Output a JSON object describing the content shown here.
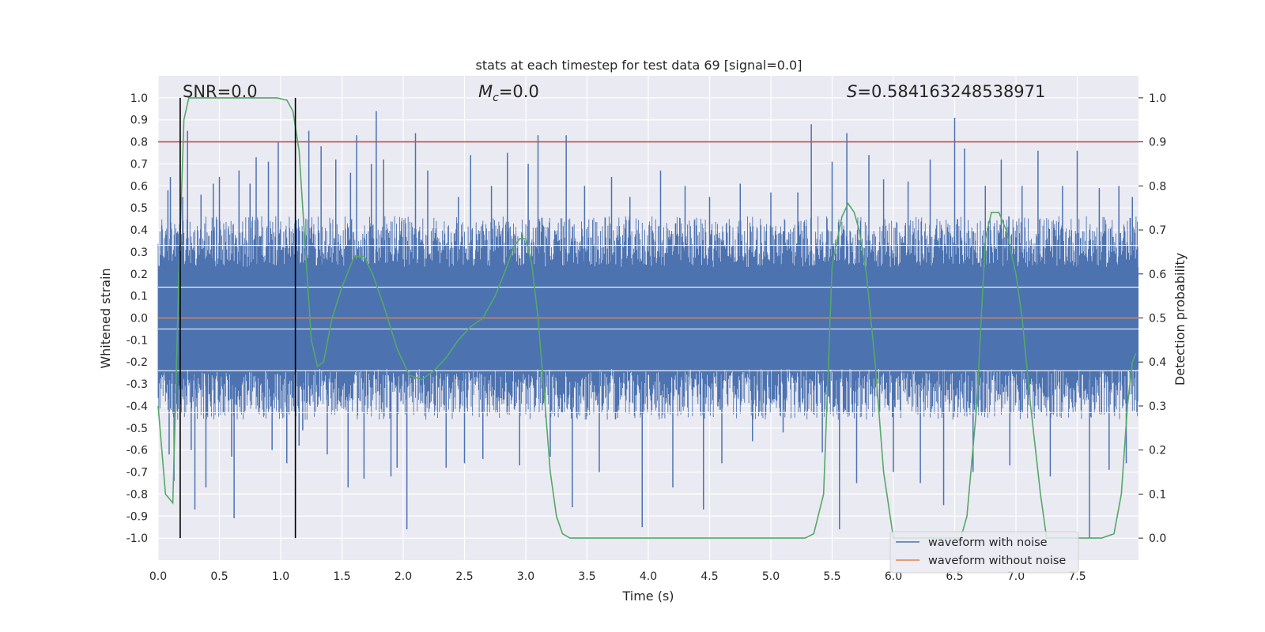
{
  "chart_data": {
    "type": "line",
    "title": "stats at each timestep for test data 69 [signal=0.0]",
    "xlabel": "Time (s)",
    "ylabel": "Whitened strain",
    "y2label": "Detection probability",
    "xlim": [
      0.0,
      8.0
    ],
    "ylim": [
      -1.1,
      1.1
    ],
    "y2lim": [
      -0.05,
      1.05
    ],
    "xticks": [
      "0.0",
      "0.5",
      "1.0",
      "1.5",
      "2.0",
      "2.5",
      "3.0",
      "3.5",
      "4.0",
      "4.5",
      "5.0",
      "5.5",
      "6.0",
      "6.5",
      "7.0",
      "7.5"
    ],
    "yticks": [
      "1.0",
      "0.9",
      "0.8",
      "0.7",
      "0.6",
      "0.5",
      "0.4",
      "0.3",
      "0.2",
      "0.1",
      "0.0",
      "-0.1",
      "-0.2",
      "-0.3",
      "-0.4",
      "-0.5",
      "-0.6",
      "-0.7",
      "-0.8",
      "-0.9",
      "-1.0"
    ],
    "y2ticks": [
      "1.0",
      "0.9",
      "0.8",
      "0.7",
      "0.6",
      "0.5",
      "0.4",
      "0.3",
      "0.2",
      "0.1",
      "0.0"
    ],
    "annotations": {
      "snr": "SNR=0.0",
      "mc_symbol": "M",
      "mc_sub": "c",
      "mc_value": "=0.0",
      "s_symbol": "S",
      "s_value": "=0.584163248538971"
    },
    "legend": {
      "placement": "lower-right",
      "entries": [
        "waveform with noise",
        "waveform without noise"
      ]
    },
    "grid": true,
    "colors": {
      "background": "#eaeaf2",
      "grid": "#ffffff",
      "noise": "#4c72b0",
      "clean": "#dd8452",
      "probability": "#55a868",
      "threshold": "#c44e52",
      "marker": "#000000"
    },
    "threshold": {
      "value": 0.9,
      "axis": "right"
    },
    "markers_x": [
      0.18,
      1.12
    ],
    "noise_series": {
      "name": "waveform with noise",
      "dense_band": [
        -0.42,
        0.42
      ],
      "spikes": [
        [
          0.03,
          0.42
        ],
        [
          0.08,
          0.58
        ],
        [
          0.09,
          -0.62
        ],
        [
          0.1,
          0.64
        ],
        [
          0.13,
          -0.74
        ],
        [
          0.2,
          0.55
        ],
        [
          0.24,
          0.85
        ],
        [
          0.27,
          -0.6
        ],
        [
          0.3,
          -0.87
        ],
        [
          0.35,
          0.56
        ],
        [
          0.39,
          -0.77
        ],
        [
          0.45,
          0.61
        ],
        [
          0.5,
          0.64
        ],
        [
          0.6,
          -0.63
        ],
        [
          0.62,
          -0.91
        ],
        [
          0.66,
          0.67
        ],
        [
          0.75,
          0.61
        ],
        [
          0.8,
          0.73
        ],
        [
          0.9,
          0.71
        ],
        [
          0.93,
          -0.6
        ],
        [
          0.98,
          0.8
        ],
        [
          1.05,
          -0.66
        ],
        [
          1.15,
          -0.58
        ],
        [
          1.18,
          -0.51
        ],
        [
          1.23,
          0.85
        ],
        [
          1.33,
          0.78
        ],
        [
          1.38,
          -0.62
        ],
        [
          1.45,
          0.72
        ],
        [
          1.55,
          -0.77
        ],
        [
          1.57,
          0.66
        ],
        [
          1.62,
          0.83
        ],
        [
          1.68,
          -0.73
        ],
        [
          1.74,
          0.7
        ],
        [
          1.78,
          0.94
        ],
        [
          1.84,
          0.72
        ],
        [
          1.9,
          -0.72
        ],
        [
          1.95,
          -0.68
        ],
        [
          2.03,
          -0.96
        ],
        [
          2.1,
          0.84
        ],
        [
          2.2,
          0.67
        ],
        [
          2.35,
          -0.68
        ],
        [
          2.45,
          0.55
        ],
        [
          2.5,
          -0.66
        ],
        [
          2.55,
          0.74
        ],
        [
          2.65,
          -0.64
        ],
        [
          2.72,
          0.6
        ],
        [
          2.85,
          0.75
        ],
        [
          2.95,
          -0.67
        ],
        [
          3.02,
          0.7
        ],
        [
          3.1,
          0.83
        ],
        [
          3.2,
          -0.63
        ],
        [
          3.33,
          0.83
        ],
        [
          3.38,
          -0.86
        ],
        [
          3.48,
          0.6
        ],
        [
          3.6,
          -0.7
        ],
        [
          3.7,
          0.64
        ],
        [
          3.85,
          0.55
        ],
        [
          3.95,
          -0.95
        ],
        [
          4.1,
          0.67
        ],
        [
          4.2,
          -0.77
        ],
        [
          4.3,
          0.6
        ],
        [
          4.45,
          -0.87
        ],
        [
          4.5,
          0.55
        ],
        [
          4.6,
          -0.66
        ],
        [
          4.75,
          0.61
        ],
        [
          4.85,
          -0.56
        ],
        [
          5.0,
          0.57
        ],
        [
          5.1,
          -0.52
        ],
        [
          5.22,
          0.57
        ],
        [
          5.33,
          0.88
        ],
        [
          5.42,
          -0.61
        ],
        [
          5.5,
          0.71
        ],
        [
          5.56,
          -0.96
        ],
        [
          5.62,
          0.84
        ],
        [
          5.7,
          -0.75
        ],
        [
          5.8,
          0.74
        ],
        [
          5.92,
          0.63
        ],
        [
          6.0,
          -0.7
        ],
        [
          6.12,
          0.62
        ],
        [
          6.22,
          -0.75
        ],
        [
          6.3,
          0.72
        ],
        [
          6.41,
          -0.85
        ],
        [
          6.5,
          0.91
        ],
        [
          6.58,
          0.77
        ],
        [
          6.65,
          -0.7
        ],
        [
          6.75,
          0.6
        ],
        [
          6.88,
          0.72
        ],
        [
          6.95,
          -0.67
        ],
        [
          7.05,
          0.6
        ],
        [
          7.18,
          0.76
        ],
        [
          7.28,
          -0.72
        ],
        [
          7.38,
          0.6
        ],
        [
          7.5,
          0.76
        ],
        [
          7.6,
          -1.0
        ],
        [
          7.68,
          0.59
        ],
        [
          7.76,
          -0.69
        ],
        [
          7.84,
          0.6
        ],
        [
          7.9,
          -0.66
        ],
        [
          7.95,
          0.55
        ]
      ]
    },
    "clean_series": {
      "name": "waveform without noise",
      "y": 0.0
    },
    "probability_series": {
      "x": [
        0.0,
        0.03,
        0.06,
        0.12,
        0.17,
        0.21,
        0.25,
        0.4,
        0.6,
        0.8,
        0.97,
        1.05,
        1.1,
        1.15,
        1.18,
        1.25,
        1.3,
        1.35,
        1.42,
        1.5,
        1.6,
        1.68,
        1.75,
        1.85,
        1.95,
        2.05,
        2.15,
        2.25,
        2.35,
        2.45,
        2.55,
        2.65,
        2.75,
        2.85,
        2.9,
        2.95,
        3.0,
        3.05,
        3.1,
        3.15,
        3.2,
        3.25,
        3.3,
        3.36,
        3.42,
        3.5,
        3.8,
        4.2,
        4.6,
        5.0,
        5.2,
        5.28,
        5.35,
        5.43,
        5.5,
        5.58,
        5.63,
        5.68,
        5.72,
        5.78,
        5.85,
        5.92,
        6.0,
        6.05,
        6.1,
        6.15,
        6.25,
        6.4,
        6.55,
        6.6,
        6.68,
        6.75,
        6.8,
        6.86,
        6.92,
        7.0,
        7.05,
        7.12,
        7.2,
        7.25,
        7.3,
        7.4,
        7.5,
        7.6,
        7.7,
        7.8,
        7.86,
        7.91,
        7.95,
        7.98
      ],
      "y": [
        0.3,
        0.2,
        0.1,
        0.08,
        0.6,
        0.95,
        1.0,
        1.0,
        1.0,
        1.0,
        1.0,
        0.995,
        0.97,
        0.88,
        0.75,
        0.45,
        0.39,
        0.4,
        0.5,
        0.57,
        0.64,
        0.64,
        0.6,
        0.52,
        0.43,
        0.37,
        0.36,
        0.38,
        0.41,
        0.45,
        0.48,
        0.5,
        0.55,
        0.62,
        0.66,
        0.68,
        0.68,
        0.62,
        0.5,
        0.33,
        0.15,
        0.05,
        0.01,
        0.0,
        0.0,
        0.0,
        0.0,
        0.0,
        0.0,
        0.0,
        0.0,
        0.0,
        0.01,
        0.1,
        0.62,
        0.73,
        0.76,
        0.74,
        0.7,
        0.6,
        0.4,
        0.15,
        0.0,
        0.0,
        0.0,
        0.0,
        0.0,
        0.0,
        0.0,
        0.05,
        0.3,
        0.68,
        0.74,
        0.74,
        0.7,
        0.6,
        0.5,
        0.3,
        0.1,
        0.0,
        0.0,
        0.0,
        0.0,
        0.0,
        0.0,
        0.01,
        0.1,
        0.3,
        0.4,
        0.42
      ]
    }
  }
}
